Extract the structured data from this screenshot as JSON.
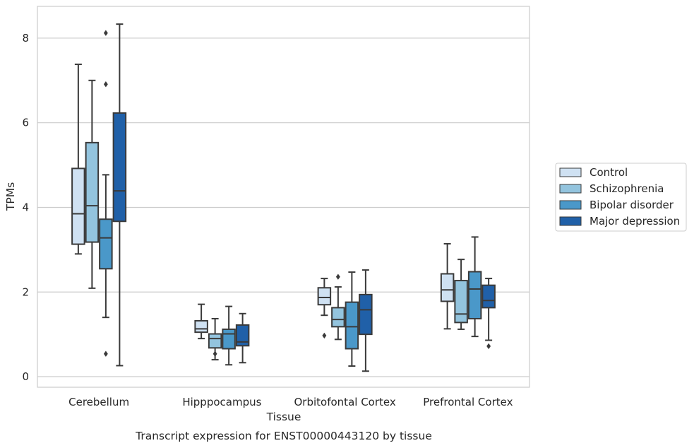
{
  "chart_data": {
    "type": "box",
    "caption": "Transcript expression for ENST00000443120 by tissue",
    "xlabel": "Tissue",
    "ylabel": "TPMs",
    "ylim": [
      -0.25,
      8.75
    ],
    "yticks": [
      0,
      2,
      4,
      6,
      8
    ],
    "grid": true,
    "legend_position": "right",
    "categories": [
      "Cerebellum",
      "Hipppocampus",
      "Orbitofontal Cortex",
      "Prefrontal Cortex"
    ],
    "series": [
      {
        "name": "Control",
        "color": "#cfe1f2",
        "boxes": [
          {
            "whislo": 2.9,
            "q1": 3.13,
            "med": 3.85,
            "q3": 4.92,
            "whishi": 7.38,
            "fliers": []
          },
          {
            "whislo": 0.9,
            "q1": 1.05,
            "med": 1.13,
            "q3": 1.32,
            "whishi": 1.71,
            "fliers": []
          },
          {
            "whislo": 1.45,
            "q1": 1.7,
            "med": 1.87,
            "q3": 2.1,
            "whishi": 2.32,
            "fliers": [
              0.97
            ]
          },
          {
            "whislo": 1.13,
            "q1": 1.78,
            "med": 2.05,
            "q3": 2.43,
            "whishi": 3.14,
            "fliers": []
          }
        ]
      },
      {
        "name": "Schizophrenia",
        "color": "#93c4de",
        "boxes": [
          {
            "whislo": 2.09,
            "q1": 3.18,
            "med": 4.04,
            "q3": 5.53,
            "whishi": 7.0,
            "fliers": []
          },
          {
            "whislo": 0.4,
            "q1": 0.68,
            "med": 0.9,
            "q3": 1.01,
            "whishi": 1.37,
            "fliers": [
              0.54
            ]
          },
          {
            "whislo": 0.88,
            "q1": 1.18,
            "med": 1.35,
            "q3": 1.63,
            "whishi": 2.12,
            "fliers": [
              2.36
            ]
          },
          {
            "whislo": 1.12,
            "q1": 1.28,
            "med": 1.48,
            "q3": 2.27,
            "whishi": 2.77,
            "fliers": []
          }
        ]
      },
      {
        "name": "Bipolar disorder",
        "color": "#4a98c9",
        "boxes": [
          {
            "whislo": 1.4,
            "q1": 2.55,
            "med": 3.28,
            "q3": 3.72,
            "whishi": 4.77,
            "fliers": [
              0.54,
              6.91,
              8.12
            ]
          },
          {
            "whislo": 0.28,
            "q1": 0.66,
            "med": 1.01,
            "q3": 1.12,
            "whishi": 1.66,
            "fliers": []
          },
          {
            "whislo": 0.25,
            "q1": 0.66,
            "med": 1.18,
            "q3": 1.76,
            "whishi": 2.47,
            "fliers": []
          },
          {
            "whislo": 0.95,
            "q1": 1.37,
            "med": 2.07,
            "q3": 2.48,
            "whishi": 3.3,
            "fliers": []
          }
        ]
      },
      {
        "name": "Major depression",
        "color": "#2060a8",
        "boxes": [
          {
            "whislo": 0.26,
            "q1": 3.67,
            "med": 4.39,
            "q3": 6.23,
            "whishi": 8.33,
            "fliers": []
          },
          {
            "whislo": 0.33,
            "q1": 0.73,
            "med": 0.82,
            "q3": 1.22,
            "whishi": 1.49,
            "fliers": []
          },
          {
            "whislo": 0.13,
            "q1": 1.0,
            "med": 1.58,
            "q3": 1.94,
            "whishi": 2.52,
            "fliers": []
          },
          {
            "whislo": 0.86,
            "q1": 1.63,
            "med": 1.8,
            "q3": 2.16,
            "whishi": 2.32,
            "fliers": [
              0.72
            ]
          }
        ]
      }
    ]
  }
}
